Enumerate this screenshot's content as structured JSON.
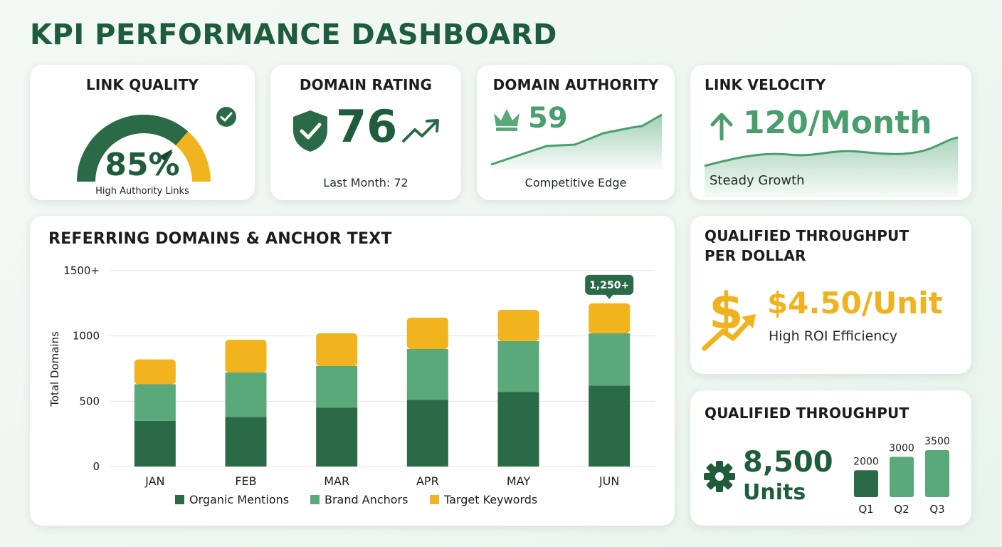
{
  "page": {
    "title": "KPI PERFORMANCE DASHBOARD"
  },
  "colors": {
    "dark_green": "#2a6a47",
    "mid_green": "#5aa97a",
    "gold": "#f2b41e",
    "title_green": "#1f5c3c"
  },
  "link_quality": {
    "title": "LINK QUALITY",
    "value": "85%",
    "percent": 85,
    "subtitle": "High Authority Links",
    "icon": "check-circle-icon"
  },
  "domain_rating": {
    "title": "DOMAIN RATING",
    "value": "76",
    "subtitle": "Last Month: 72",
    "icons": [
      "shield-check-icon",
      "trend-up-icon"
    ]
  },
  "domain_authority": {
    "title": "DOMAIN AUTHORITY",
    "value": "59",
    "subtitle": "Competitive Edge",
    "icon": "crown-icon"
  },
  "link_velocity": {
    "title": "LINK VELOCITY",
    "value": "120/Month",
    "subtitle": "Steady Growth",
    "icon": "arrow-up-icon"
  },
  "referring_domains": {
    "title": "REFERRING DOMAINS & ANCHOR TEXT",
    "callout": "1,250+"
  },
  "throughput_per_dollar": {
    "title_line1": "QUALIFIED THROUGHPUT",
    "title_line2": "PER DOLLAR",
    "value": "$4.50/Unit",
    "subtitle": "High ROI Efficiency",
    "icon": "dollar-growth-icon"
  },
  "throughput": {
    "title": "QUALIFIED THROUGHPUT",
    "value": "8,500",
    "unit": "Units",
    "icon": "gear-icon"
  },
  "chart_data": [
    {
      "type": "bar",
      "stacked": true,
      "title": "REFERRING DOMAINS & ANCHOR TEXT",
      "ylabel": "Total Domains",
      "xlabel": "",
      "categories": [
        "JAN",
        "FEB",
        "MAR",
        "APR",
        "MAY",
        "JUN"
      ],
      "yticks": [
        "0",
        "500",
        "1000",
        "1500+"
      ],
      "ylim": [
        0,
        1500
      ],
      "grid": true,
      "legend_position": "bottom",
      "series": [
        {
          "name": "Organic Mentions",
          "color": "#2a6a47",
          "values": [
            350,
            380,
            450,
            510,
            570,
            620
          ]
        },
        {
          "name": "Brand Anchors",
          "color": "#5aa97a",
          "values": [
            280,
            340,
            320,
            390,
            390,
            400
          ]
        },
        {
          "name": "Target Keywords",
          "color": "#f2b41e",
          "values": [
            190,
            250,
            250,
            240,
            240,
            230
          ]
        }
      ],
      "annotations": [
        {
          "category": "JUN",
          "text": "1,250+"
        }
      ]
    },
    {
      "type": "bar",
      "title": "",
      "categories": [
        "Q1",
        "Q2",
        "Q3"
      ],
      "values": [
        2000,
        3000,
        3500
      ],
      "labels": [
        "2000",
        "3000",
        "3500"
      ],
      "colors": [
        "#2a6a47",
        "#5aa97a",
        "#5aa97a"
      ],
      "ylim": [
        0,
        3500
      ]
    }
  ]
}
